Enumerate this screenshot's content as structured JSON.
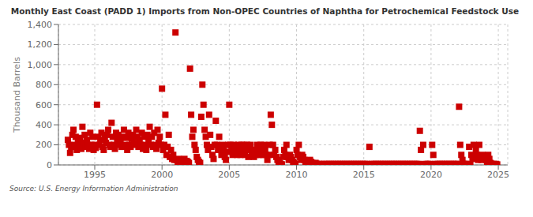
{
  "chart_data": {
    "type": "scatter",
    "title": "Monthly East Coast (PADD 1) Imports from Non-OPEC Countries of Naphtha for Petrochemical Feedstock Use",
    "ylabel": "Thousand Barrels",
    "annotations": [
      "Source: U.S. Energy Information Administration"
    ],
    "color": "#cc0000",
    "marker": "square",
    "grid": true,
    "xlim": [
      1992.3,
      2025.7
    ],
    "xticks": [
      1995,
      2000,
      2005,
      2010,
      2015,
      2020,
      2025
    ],
    "ylim": [
      0,
      1400
    ],
    "yticks": [
      0,
      200,
      400,
      600,
      800,
      {
        "value": 1000,
        "label": "1,000"
      },
      {
        "value": 1200,
        "label": "1,200"
      },
      {
        "value": 1400,
        "label": "1,400"
      }
    ],
    "x": [
      1993.0,
      1993.083,
      1993.167,
      1993.25,
      1993.333,
      1993.417,
      1993.5,
      1993.583,
      1993.667,
      1993.75,
      1993.833,
      1993.917,
      1994.0,
      1994.083,
      1994.167,
      1994.25,
      1994.333,
      1994.417,
      1994.5,
      1994.583,
      1994.667,
      1994.75,
      1994.833,
      1994.917,
      1995.0,
      1995.083,
      1995.167,
      1995.25,
      1995.333,
      1995.417,
      1995.5,
      1995.583,
      1995.667,
      1995.75,
      1995.833,
      1995.917,
      1996.0,
      1996.083,
      1996.167,
      1996.25,
      1996.333,
      1996.417,
      1996.5,
      1996.583,
      1996.667,
      1996.75,
      1996.833,
      1996.917,
      1997.0,
      1997.083,
      1997.167,
      1997.25,
      1997.333,
      1997.417,
      1997.5,
      1997.583,
      1997.667,
      1997.75,
      1997.833,
      1997.917,
      1998.0,
      1998.083,
      1998.167,
      1998.25,
      1998.333,
      1998.417,
      1998.5,
      1998.583,
      1998.667,
      1998.75,
      1998.833,
      1998.917,
      1999.0,
      1999.083,
      1999.167,
      1999.25,
      1999.333,
      1999.417,
      1999.5,
      1999.583,
      1999.667,
      1999.75,
      1999.833,
      1999.917,
      2000.0,
      2000.083,
      2000.167,
      2000.25,
      2000.333,
      2000.417,
      2000.5,
      2000.583,
      2000.667,
      2000.75,
      2000.833,
      2000.917,
      2001.0,
      2001.083,
      2001.167,
      2001.25,
      2001.333,
      2001.417,
      2001.5,
      2001.583,
      2001.667,
      2001.75,
      2001.833,
      2001.917,
      2002.0,
      2002.083,
      2002.167,
      2002.25,
      2002.333,
      2002.417,
      2002.5,
      2002.583,
      2002.667,
      2002.75,
      2002.833,
      2002.917,
      2003.0,
      2003.083,
      2003.167,
      2003.25,
      2003.333,
      2003.417,
      2003.5,
      2003.583,
      2003.667,
      2003.75,
      2003.833,
      2003.917,
      2004.0,
      2004.083,
      2004.167,
      2004.25,
      2004.333,
      2004.417,
      2004.5,
      2004.583,
      2004.667,
      2004.75,
      2004.833,
      2004.917,
      2005.0,
      2005.083,
      2005.167,
      2005.25,
      2005.333,
      2005.417,
      2005.5,
      2005.583,
      2005.667,
      2005.75,
      2005.833,
      2005.917,
      2006.0,
      2006.083,
      2006.167,
      2006.25,
      2006.333,
      2006.417,
      2006.5,
      2006.583,
      2006.667,
      2006.75,
      2006.833,
      2006.917,
      2007.0,
      2007.083,
      2007.167,
      2007.25,
      2007.333,
      2007.417,
      2007.5,
      2007.583,
      2007.667,
      2007.75,
      2007.833,
      2007.917,
      2008.0,
      2008.083,
      2008.167,
      2008.25,
      2008.333,
      2008.417,
      2008.5,
      2008.583,
      2008.667,
      2008.75,
      2008.833,
      2008.917,
      2009.0,
      2009.083,
      2009.167,
      2009.25,
      2009.333,
      2009.417,
      2009.5,
      2009.583,
      2009.667,
      2009.75,
      2009.833,
      2009.917,
      2010.0,
      2010.083,
      2010.167,
      2010.25,
      2010.333,
      2010.417,
      2010.5,
      2010.583,
      2010.667,
      2010.75,
      2010.833,
      2010.917,
      2011.0,
      2011.083,
      2011.167,
      2011.25,
      2011.333,
      2011.417,
      2011.5,
      2011.583,
      2011.667,
      2011.75,
      2011.833,
      2011.917,
      2012.0,
      2012.083,
      2012.167,
      2012.25,
      2012.333,
      2012.417,
      2012.5,
      2012.583,
      2012.667,
      2012.75,
      2012.833,
      2012.917,
      2013.0,
      2013.083,
      2013.167,
      2013.25,
      2013.333,
      2013.417,
      2013.5,
      2013.583,
      2013.667,
      2013.75,
      2013.833,
      2013.917,
      2014.0,
      2014.083,
      2014.167,
      2014.25,
      2014.333,
      2014.417,
      2014.5,
      2014.583,
      2014.667,
      2014.75,
      2014.833,
      2014.917,
      2015.0,
      2015.083,
      2015.167,
      2015.25,
      2015.333,
      2015.417,
      2015.5,
      2015.583,
      2015.667,
      2015.75,
      2015.833,
      2015.917,
      2016.0,
      2016.083,
      2016.167,
      2016.25,
      2016.333,
      2016.417,
      2016.5,
      2016.583,
      2016.667,
      2016.75,
      2016.833,
      2016.917,
      2017.0,
      2017.083,
      2017.167,
      2017.25,
      2017.333,
      2017.417,
      2017.5,
      2017.583,
      2017.667,
      2017.75,
      2017.833,
      2017.917,
      2018.0,
      2018.083,
      2018.167,
      2018.25,
      2018.333,
      2018.417,
      2018.5,
      2018.583,
      2018.667,
      2018.75,
      2018.833,
      2018.917,
      2019.0,
      2019.083,
      2019.167,
      2019.25,
      2019.333,
      2019.417,
      2019.5,
      2019.583,
      2019.667,
      2019.75,
      2019.833,
      2019.917,
      2020.0,
      2020.083,
      2020.167,
      2020.25,
      2020.333,
      2020.417,
      2020.5,
      2020.583,
      2020.667,
      2020.75,
      2020.833,
      2020.917,
      2021.0,
      2021.083,
      2021.167,
      2021.25,
      2021.333,
      2021.417,
      2021.5,
      2021.583,
      2021.667,
      2021.75,
      2021.833,
      2021.917,
      2022.0,
      2022.083,
      2022.167,
      2022.25,
      2022.333,
      2022.417,
      2022.5,
      2022.583,
      2022.667,
      2022.75,
      2022.833,
      2022.917,
      2023.0,
      2023.083,
      2023.167,
      2023.25,
      2023.333,
      2023.417,
      2023.5,
      2023.583,
      2023.667,
      2023.75,
      2023.833,
      2023.917,
      2024.0,
      2024.083,
      2024.167,
      2024.25,
      2024.333,
      2024.417,
      2024.5,
      2024.583,
      2024.667,
      2024.75,
      2024.833,
      2024.917
    ],
    "values": [
      250,
      200,
      120,
      180,
      300,
      350,
      200,
      280,
      150,
      220,
      190,
      270,
      160,
      380,
      220,
      300,
      180,
      250,
      200,
      160,
      320,
      200,
      280,
      150,
      200,
      170,
      600,
      280,
      200,
      250,
      320,
      180,
      150,
      270,
      220,
      300,
      350,
      200,
      180,
      420,
      280,
      200,
      160,
      320,
      250,
      300,
      200,
      230,
      180,
      280,
      350,
      200,
      270,
      150,
      320,
      200,
      180,
      260,
      300,
      220,
      200,
      350,
      280,
      180,
      250,
      200,
      320,
      160,
      280,
      200,
      150,
      300,
      250,
      380,
      200,
      280,
      180,
      320,
      200,
      160,
      350,
      220,
      280,
      200,
      760,
      150,
      200,
      500,
      100,
      180,
      300,
      80,
      150,
      60,
      100,
      50,
      1320,
      50,
      30,
      60,
      40,
      20,
      50,
      30,
      60,
      20,
      40,
      30,
      20,
      960,
      500,
      280,
      350,
      200,
      150,
      80,
      50,
      30,
      20,
      480,
      800,
      600,
      350,
      280,
      200,
      150,
      500,
      300,
      180,
      100,
      60,
      200,
      440,
      200,
      150,
      280,
      180,
      100,
      200,
      150,
      80,
      50,
      130,
      200,
      600,
      200,
      150,
      100,
      200,
      180,
      150,
      100,
      200,
      150,
      100,
      200,
      150,
      200,
      100,
      150,
      200,
      80,
      150,
      200,
      100,
      150,
      80,
      150,
      100,
      200,
      150,
      100,
      200,
      150,
      100,
      200,
      150,
      100,
      50,
      100,
      200,
      500,
      400,
      200,
      100,
      150,
      80,
      50,
      30,
      20,
      10,
      5,
      80,
      150,
      100,
      200,
      80,
      50,
      100,
      80,
      50,
      30,
      20,
      10,
      150,
      100,
      200,
      80,
      50,
      100,
      80,
      50,
      30,
      20,
      10,
      5,
      50,
      30,
      20,
      10,
      5,
      20,
      10,
      5,
      10,
      5,
      10,
      5,
      5,
      10,
      5,
      10,
      5,
      10,
      5,
      10,
      5,
      10,
      5,
      10,
      5,
      10,
      5,
      10,
      5,
      10,
      5,
      10,
      5,
      10,
      5,
      10,
      5,
      10,
      5,
      10,
      5,
      10,
      5,
      10,
      5,
      10,
      5,
      10,
      5,
      10,
      5,
      10,
      5,
      180,
      5,
      10,
      5,
      10,
      5,
      10,
      5,
      10,
      5,
      10,
      5,
      10,
      5,
      10,
      5,
      10,
      5,
      10,
      5,
      10,
      5,
      10,
      5,
      10,
      5,
      10,
      5,
      10,
      5,
      10,
      5,
      10,
      5,
      10,
      5,
      10,
      5,
      10,
      5,
      10,
      5,
      10,
      5,
      10,
      340,
      150,
      5,
      200,
      5,
      10,
      5,
      10,
      5,
      10,
      5,
      200,
      100,
      5,
      10,
      5,
      10,
      5,
      10,
      5,
      10,
      5,
      10,
      5,
      10,
      5,
      10,
      5,
      10,
      5,
      10,
      5,
      10,
      5,
      10,
      580,
      200,
      100,
      50,
      10,
      5,
      10,
      5,
      10,
      180,
      5,
      100,
      60,
      200,
      80,
      150,
      100,
      50,
      200,
      80,
      50,
      100,
      60,
      80,
      50,
      30,
      100,
      60,
      20,
      10,
      5,
      10,
      5,
      10,
      5
    ]
  }
}
